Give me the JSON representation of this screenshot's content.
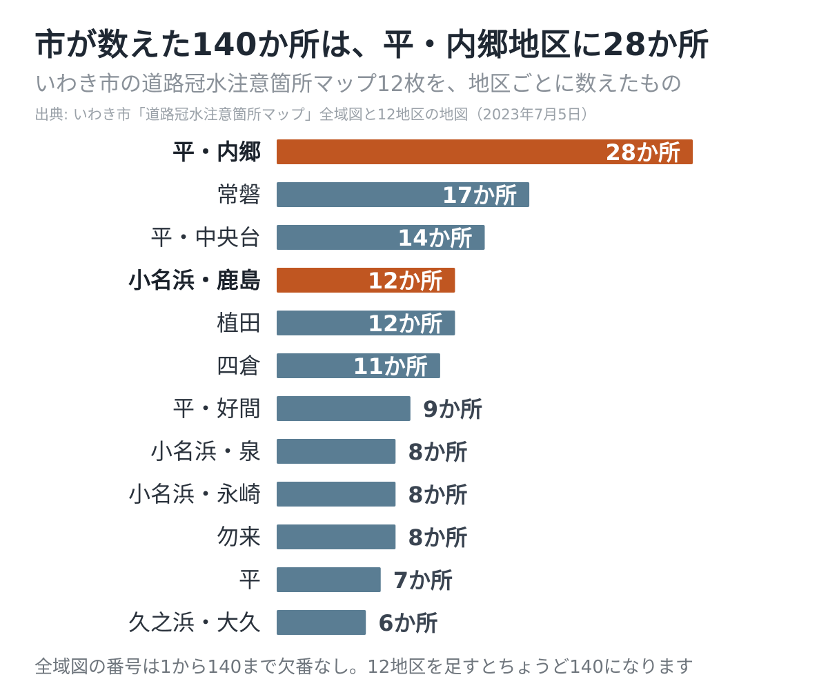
{
  "header": {
    "title": "市が数えた140か所は、平・内郷地区に28か所",
    "subtitle": "いわき市の道路冠水注意箇所マップ12枚を、地区ごとに数えたもの",
    "source": "出典: いわき市「道路冠水注意箇所マップ」全域図と12地区の地図（2023年7月5日）"
  },
  "footnote": "全域図の番号は1から140まで欠番なし。12地区を足すとちょうど140になります",
  "colors": {
    "highlight": "#c05621",
    "default": "#5a7d93",
    "label_inside": "#ffffff",
    "label_outside": "#3a4451"
  },
  "chart_data": {
    "type": "bar",
    "orientation": "horizontal",
    "unit_suffix": "か所",
    "categories": [
      "平・内郷",
      "常磐",
      "平・中央台",
      "小名浜・鹿島",
      "植田",
      "四倉",
      "平・好間",
      "小名浜・泉",
      "小名浜・永崎",
      "勿来",
      "平",
      "久之浜・大久"
    ],
    "values": [
      28,
      17,
      14,
      12,
      12,
      11,
      9,
      8,
      8,
      8,
      7,
      6
    ],
    "highlighted": [
      "平・内郷",
      "小名浜・鹿島"
    ],
    "xlim": [
      0,
      28
    ],
    "grid": false,
    "legend": "none"
  }
}
